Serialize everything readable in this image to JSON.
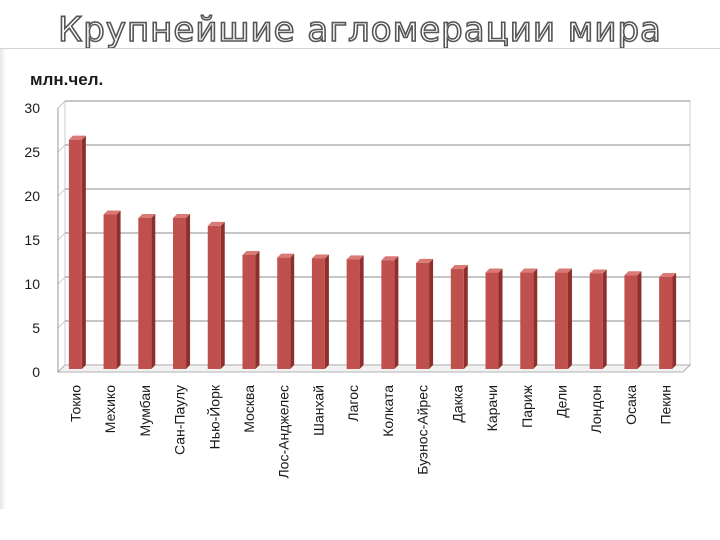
{
  "title": "Крупнейшие  агломерации мира",
  "chart_data": {
    "type": "bar",
    "title": "Крупнейшие  агломерации мира",
    "ylabel": "млн.чел.",
    "xlabel": "",
    "ylim": [
      0,
      30
    ],
    "yticks": [
      0,
      5,
      10,
      15,
      20,
      25,
      30
    ],
    "grid": true,
    "legend": "none",
    "bar_color": "#c0504d",
    "categories": [
      "Токио",
      "Мехико",
      "Мумбаи",
      "Сан-Паулу",
      "Нью-Йорк",
      "Москва",
      "Лос-Анджелес",
      "Шанхай",
      "Лагос",
      "Колката",
      "Буэнос-Айрес",
      "Дакка",
      "Карачи",
      "Париж",
      "Дели",
      "Лондон",
      "Осака",
      "Пекин"
    ],
    "values": [
      26.4,
      17.9,
      17.5,
      17.5,
      16.6,
      13.3,
      13.0,
      12.9,
      12.8,
      12.7,
      12.4,
      11.7,
      11.3,
      11.3,
      11.3,
      11.2,
      11.0,
      10.8
    ]
  }
}
